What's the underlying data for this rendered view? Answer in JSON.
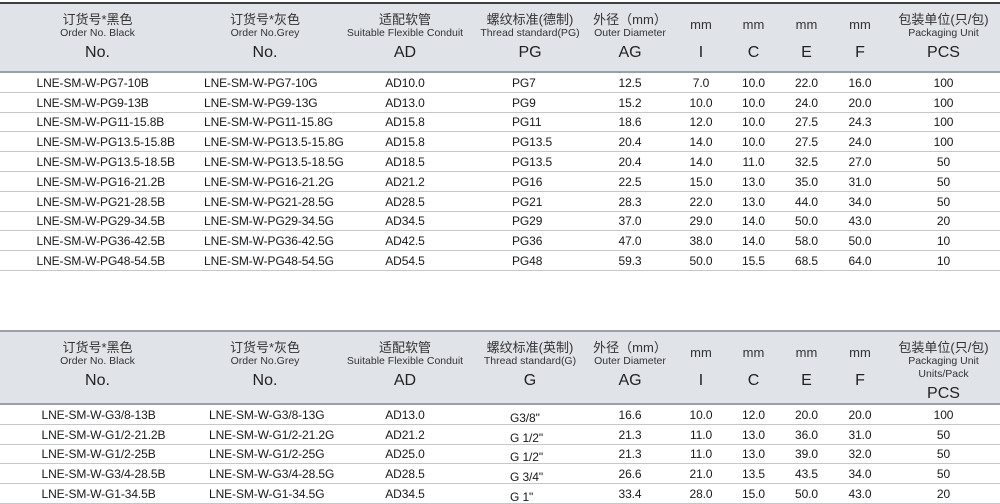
{
  "style": {
    "header_bg": "#e0e3e8",
    "table1_top_border": "#3c4046",
    "table2_top_border": "#9aa0a8",
    "header_rule": "#9aa0a8",
    "grid_line": "#c4c7cc",
    "text": "#17181a"
  },
  "tables": [
    {
      "name": "PG thread (German standard) table",
      "columns": [
        {
          "zh": "订货号*黑色",
          "en": "Order No. Black",
          "code": "No."
        },
        {
          "zh": "订货号*灰色",
          "en": "Order No.Grey",
          "code": "No."
        },
        {
          "zh": "适配软管",
          "en": "Suitable Flexible Conduit",
          "code": "AD"
        },
        {
          "zh": "螺纹标准(德制)",
          "en": "Thread standard(PG)",
          "code": "PG"
        },
        {
          "zh": "外径（mm）",
          "en": "Outer Diameter",
          "code": "AG"
        },
        {
          "unit": "mm",
          "code": "I"
        },
        {
          "unit": "mm",
          "code": "C"
        },
        {
          "unit": "mm",
          "code": "E"
        },
        {
          "unit": "mm",
          "code": "F"
        },
        {
          "zh": "包装单位(只/包)",
          "en": "Packaging Unit",
          "code": "PCS"
        }
      ],
      "rows": [
        [
          "LNE-SM-W-PG7-10B",
          "LNE-SM-W-PG7-10G",
          "AD10.0",
          "PG7",
          "12.5",
          "7.0",
          "10.0",
          "22.0",
          "16.0",
          "100"
        ],
        [
          "LNE-SM-W-PG9-13B",
          "LNE-SM-W-PG9-13G",
          "AD13.0",
          "PG9",
          "15.2",
          "10.0",
          "10.0",
          "24.0",
          "20.0",
          "100"
        ],
        [
          "LNE-SM-W-PG11-15.8B",
          "LNE-SM-W-PG11-15.8G",
          "AD15.8",
          "PG11",
          "18.6",
          "12.0",
          "10.0",
          "27.5",
          "24.3",
          "100"
        ],
        [
          "LNE-SM-W-PG13.5-15.8B",
          "LNE-SM-W-PG13.5-15.8G",
          "AD15.8",
          "PG13.5",
          "20.4",
          "14.0",
          "10.0",
          "27.5",
          "24.0",
          "100"
        ],
        [
          "LNE-SM-W-PG13.5-18.5B",
          "LNE-SM-W-PG13.5-18.5G",
          "AD18.5",
          "PG13.5",
          "20.4",
          "14.0",
          "11.0",
          "32.5",
          "27.0",
          "50"
        ],
        [
          "LNE-SM-W-PG16-21.2B",
          "LNE-SM-W-PG16-21.2G",
          "AD21.2",
          "PG16",
          "22.5",
          "15.0",
          "13.0",
          "35.0",
          "31.0",
          "50"
        ],
        [
          "LNE-SM-W-PG21-28.5B",
          "LNE-SM-W-PG21-28.5G",
          "AD28.5",
          "PG21",
          "28.3",
          "22.0",
          "13.0",
          "44.0",
          "34.0",
          "50"
        ],
        [
          "LNE-SM-W-PG29-34.5B",
          "LNE-SM-W-PG29-34.5G",
          "AD34.5",
          "PG29",
          "37.0",
          "29.0",
          "14.0",
          "50.0",
          "43.0",
          "20"
        ],
        [
          "LNE-SM-W-PG36-42.5B",
          "LNE-SM-W-PG36-42.5G",
          "AD42.5",
          "PG36",
          "47.0",
          "38.0",
          "14.0",
          "58.0",
          "50.0",
          "10"
        ],
        [
          "LNE-SM-W-PG48-54.5B",
          "LNE-SM-W-PG48-54.5G",
          "AD54.5",
          "PG48",
          "59.3",
          "50.0",
          "15.5",
          "68.5",
          "64.0",
          "10"
        ]
      ]
    },
    {
      "name": "G thread (British standard) table",
      "columns": [
        {
          "zh": "订货号*黑色",
          "en": "Order No. Black",
          "code": "No."
        },
        {
          "zh": "订货号*灰色",
          "en": "Order No.Grey",
          "code": "No."
        },
        {
          "zh": "适配软管",
          "en": "Suitable Flexible Conduit",
          "code": "AD"
        },
        {
          "zh": "螺纹标准(英制)",
          "en": "Thread standard(G)",
          "code": "G"
        },
        {
          "zh": "外径（mm）",
          "en": "Outer Diameter",
          "code": "AG"
        },
        {
          "unit": "mm",
          "code": "I"
        },
        {
          "unit": "mm",
          "code": "C"
        },
        {
          "unit": "mm",
          "code": "E"
        },
        {
          "unit": "mm",
          "code": "F"
        },
        {
          "zh": "包装单位(只/包)",
          "en": "Packaging Unit Units/Pack",
          "code": "PCS"
        }
      ],
      "rows": [
        [
          "LNE-SM-W-G3/8-13B",
          "LNE-SM-W-G3/8-13G",
          "AD13.0",
          "G3/8\"",
          "16.6",
          "10.0",
          "12.0",
          "20.0",
          "20.0",
          "100"
        ],
        [
          "LNE-SM-W-G1/2-21.2B",
          "LNE-SM-W-G1/2-21.2G",
          "AD21.2",
          "G 1/2\"",
          "21.3",
          "11.0",
          "13.0",
          "36.0",
          "31.0",
          "50"
        ],
        [
          "LNE-SM-W-G1/2-25B",
          "LNE-SM-W-G1/2-25G",
          "AD25.0",
          "G 1/2\"",
          "21.3",
          "11.0",
          "13.0",
          "39.0",
          "32.0",
          "50"
        ],
        [
          "LNE-SM-W-G3/4-28.5B",
          "LNE-SM-W-G3/4-28.5G",
          "AD28.5",
          "G 3/4\"",
          "26.6",
          "21.0",
          "13.5",
          "43.5",
          "34.0",
          "50"
        ],
        [
          "LNE-SM-W-G1-34.5B",
          "LNE-SM-W-G1-34.5G",
          "AD34.5",
          "G 1\"",
          "33.4",
          "28.0",
          "15.0",
          "50.0",
          "43.0",
          "20"
        ]
      ]
    }
  ]
}
